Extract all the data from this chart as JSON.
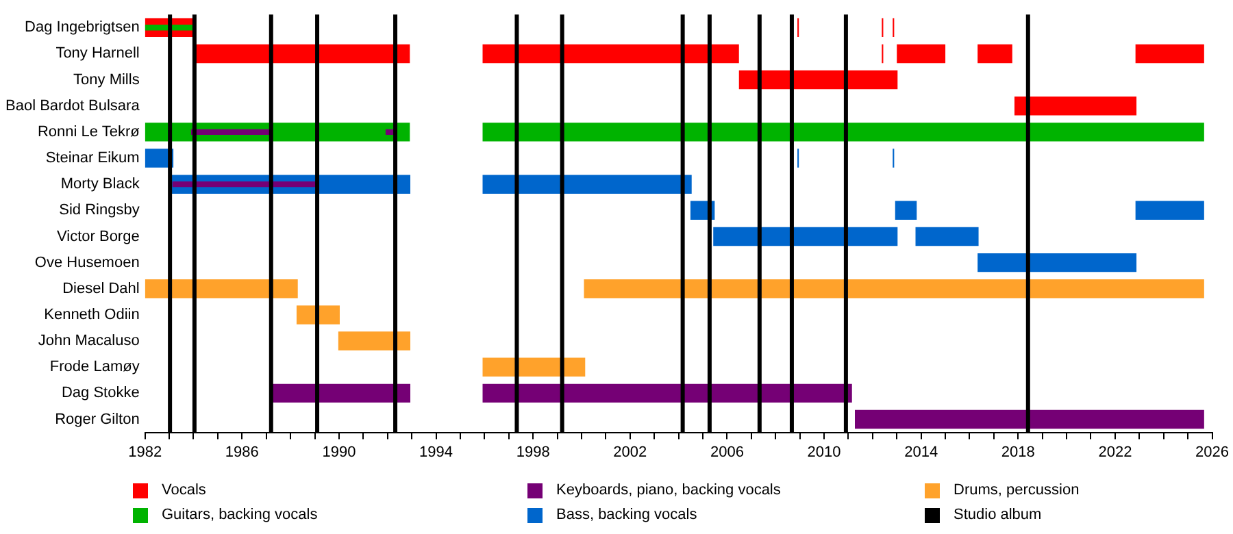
{
  "chart_data": {
    "type": "bar",
    "orientation": "horizontal",
    "categories": [
      "Dag Ingebrigtsen",
      "Tony Harnell",
      "Tony Mills",
      "Baol Bardot Bulsara",
      "Ronni Le Tekrø",
      "Steinar Eikum",
      "Morty Black",
      "Sid Ringsby",
      "Victor Borge",
      "Ove Husemoen",
      "Diesel Dahl",
      "Kenneth Odiin",
      "John Macaluso",
      "Frode Lamøy",
      "Dag Stokke",
      "Roger Gilton"
    ],
    "series": [
      {
        "name": "Vocals",
        "color": "#ff0000",
        "base": [
          1982,
          1984.02,
          2006.49,
          2017.85,
          null,
          null,
          null,
          null,
          null,
          null,
          null,
          null,
          null,
          null,
          null,
          null
        ],
        "values": [
          2.0,
          8.9,
          6.54,
          5.03,
          null,
          null,
          null,
          null,
          null,
          null,
          null,
          null,
          null,
          null,
          null,
          null
        ]
      },
      {
        "color": "#ff0000",
        "base": [
          2008.9,
          1995.92,
          null,
          null,
          null,
          null,
          null,
          null,
          null,
          null,
          null,
          null,
          null,
          null,
          null,
          null
        ],
        "values": [
          0.06,
          10.57,
          null,
          null,
          null,
          null,
          null,
          null,
          null,
          null,
          null,
          null,
          null,
          null,
          null,
          null
        ]
      },
      {
        "color": "#ff0000",
        "base": [
          2012.38,
          2012.38,
          null,
          null,
          null,
          null,
          null,
          null,
          null,
          null,
          null,
          null,
          null,
          null,
          null,
          null
        ],
        "values": [
          0.06,
          0.06,
          null,
          null,
          null,
          null,
          null,
          null,
          null,
          null,
          null,
          null,
          null,
          null,
          null,
          null
        ]
      },
      {
        "color": "#ff0000",
        "base": [
          2012.83,
          2013.0,
          null,
          null,
          null,
          null,
          null,
          null,
          null,
          null,
          null,
          null,
          null,
          null,
          null,
          null
        ],
        "values": [
          0.06,
          2.0,
          null,
          null,
          null,
          null,
          null,
          null,
          null,
          null,
          null,
          null,
          null,
          null,
          null,
          null
        ]
      },
      {
        "color": "#ff0000",
        "base": [
          null,
          2016.33,
          null,
          null,
          null,
          null,
          null,
          null,
          null,
          null,
          null,
          null,
          null,
          null,
          null,
          null
        ],
        "values": [
          null,
          1.43,
          null,
          null,
          null,
          null,
          null,
          null,
          null,
          null,
          null,
          null,
          null,
          null,
          null,
          null
        ]
      },
      {
        "color": "#ff0000",
        "base": [
          null,
          2022.84,
          null,
          null,
          null,
          null,
          null,
          null,
          null,
          null,
          null,
          null,
          null,
          null,
          null,
          null
        ],
        "values": [
          null,
          2.83,
          null,
          null,
          null,
          null,
          null,
          null,
          null,
          null,
          null,
          null,
          null,
          null,
          null,
          null
        ]
      },
      {
        "name": "Guitars, backing vocals",
        "color": "#00b300",
        "base": [
          null,
          null,
          null,
          null,
          1982,
          null,
          null,
          null,
          null,
          null,
          null,
          null,
          null,
          null,
          null,
          null
        ],
        "values": [
          null,
          null,
          null,
          null,
          10.92,
          null,
          null,
          null,
          null,
          null,
          null,
          null,
          null,
          null,
          null,
          null
        ]
      },
      {
        "color": "#00b300",
        "base": [
          null,
          null,
          null,
          null,
          1995.92,
          null,
          null,
          null,
          null,
          null,
          null,
          null,
          null,
          null,
          null,
          null
        ],
        "values": [
          null,
          null,
          null,
          null,
          29.75,
          null,
          null,
          null,
          null,
          null,
          null,
          null,
          null,
          null,
          null,
          null
        ]
      },
      {
        "color": "#00b300",
        "base": [
          1982,
          null,
          null,
          null,
          null,
          null,
          null,
          null,
          null,
          null,
          null,
          null,
          null,
          null,
          null,
          null
        ],
        "values": [
          2.0,
          null,
          null,
          null,
          null,
          null,
          null,
          null,
          null,
          null,
          null,
          null,
          null,
          null,
          null,
          null
        ]
      },
      {
        "name": "Keyboards, piano, backing vocals",
        "color": "#750075",
        "base": [
          null,
          null,
          null,
          null,
          null,
          null,
          null,
          null,
          null,
          null,
          null,
          null,
          null,
          null,
          1987.19,
          2011.27
        ],
        "values": [
          null,
          null,
          null,
          null,
          null,
          null,
          null,
          null,
          null,
          null,
          null,
          null,
          null,
          null,
          5.75,
          14.4
        ]
      },
      {
        "color": "#750075",
        "base": [
          null,
          null,
          null,
          null,
          null,
          null,
          null,
          null,
          null,
          null,
          null,
          null,
          null,
          null,
          1995.92,
          null
        ],
        "values": [
          null,
          null,
          null,
          null,
          null,
          null,
          null,
          null,
          null,
          null,
          null,
          null,
          null,
          null,
          15.23,
          null
        ]
      },
      {
        "name": "Bass, backing vocals",
        "color": "#0066cc",
        "base": [
          null,
          null,
          null,
          null,
          null,
          1982,
          1983.11,
          2004.49,
          2005.43,
          2016.33,
          null,
          null,
          null,
          null,
          null,
          null
        ],
        "values": [
          null,
          null,
          null,
          null,
          null,
          1.17,
          9.83,
          1.0,
          7.6,
          6.55,
          null,
          null,
          null,
          null,
          null,
          null
        ]
      },
      {
        "color": "#0066cc",
        "base": [
          null,
          null,
          null,
          null,
          null,
          2008.9,
          1995.92,
          2012.93,
          2013.77,
          null,
          null,
          null,
          null,
          null,
          null,
          null
        ],
        "values": [
          null,
          null,
          null,
          null,
          null,
          0.06,
          8.62,
          0.89,
          2.6,
          null,
          null,
          null,
          null,
          null,
          null,
          null
        ]
      },
      {
        "color": "#0066cc",
        "base": [
          null,
          null,
          null,
          null,
          null,
          2012.83,
          null,
          2022.84,
          null,
          null,
          null,
          null,
          null,
          null,
          null,
          null
        ],
        "values": [
          null,
          null,
          null,
          null,
          null,
          0.06,
          null,
          2.83,
          null,
          null,
          null,
          null,
          null,
          null,
          null,
          null
        ]
      },
      {
        "name": "Drums, percussion",
        "color": "#ffa22b",
        "base": [
          null,
          null,
          null,
          null,
          null,
          null,
          null,
          null,
          null,
          null,
          1982,
          1988.25,
          1989.97,
          1995.92,
          null,
          null
        ],
        "values": [
          null,
          null,
          null,
          null,
          null,
          null,
          null,
          null,
          null,
          null,
          6.3,
          1.78,
          2.97,
          4.23,
          null,
          null
        ]
      },
      {
        "color": "#ffa22b",
        "base": [
          null,
          null,
          null,
          null,
          null,
          null,
          null,
          null,
          null,
          null,
          2000.1,
          null,
          null,
          null,
          null,
          null
        ],
        "values": [
          null,
          null,
          null,
          null,
          null,
          null,
          null,
          null,
          null,
          null,
          25.57,
          null,
          null,
          null,
          null,
          null
        ]
      },
      {
        "color": "#750075",
        "base": [
          null,
          null,
          null,
          null,
          1983.9,
          null,
          1983.13,
          null,
          null,
          null,
          null,
          null,
          null,
          null,
          null,
          null
        ],
        "values": [
          null,
          null,
          null,
          null,
          3.35,
          null,
          5.97,
          null,
          null,
          null,
          null,
          null,
          null,
          null,
          null,
          null
        ]
      },
      {
        "color": "#750075",
        "base": [
          null,
          null,
          null,
          null,
          1991.92,
          null,
          null,
          null,
          null,
          null,
          null,
          null,
          null,
          null,
          null,
          null
        ],
        "values": [
          null,
          null,
          null,
          null,
          0.33,
          null,
          null,
          null,
          null,
          null,
          null,
          null,
          null,
          null,
          null,
          null
        ]
      }
    ],
    "xlim": [
      1982,
      2026
    ],
    "xticks": [
      1982,
      {
        "value": 1983,
        "label": null
      },
      {
        "value": 1984,
        "label": null
      },
      {
        "value": 1985,
        "label": null
      },
      1986,
      {
        "value": 1987,
        "label": null
      },
      {
        "value": 1988,
        "label": null
      },
      {
        "value": 1989,
        "label": null
      },
      1990,
      {
        "value": 1991,
        "label": null
      },
      {
        "value": 1992,
        "label": null
      },
      {
        "value": 1993,
        "label": null
      },
      1994,
      {
        "value": 1995,
        "label": null
      },
      {
        "value": 1996,
        "label": null
      },
      {
        "value": 1997,
        "label": null
      },
      1998,
      {
        "value": 1999,
        "label": null
      },
      {
        "value": 2000,
        "label": null
      },
      {
        "value": 2001,
        "label": null
      },
      2002,
      {
        "value": 2003,
        "label": null
      },
      {
        "value": 2004,
        "label": null
      },
      {
        "value": 2005,
        "label": null
      },
      2006,
      {
        "value": 2007,
        "label": null
      },
      {
        "value": 2008,
        "label": null
      },
      {
        "value": 2009,
        "label": null
      },
      2010,
      {
        "value": 2011,
        "label": null
      },
      {
        "value": 2012,
        "label": null
      },
      {
        "value": 2013,
        "label": null
      },
      2014,
      {
        "value": 2015,
        "label": null
      },
      {
        "value": 2016,
        "label": null
      },
      {
        "value": 2017,
        "label": null
      },
      2018,
      {
        "value": 2019,
        "label": null
      },
      {
        "value": 2020,
        "label": null
      },
      {
        "value": 2021,
        "label": null
      },
      2022,
      {
        "value": 2023,
        "label": null
      },
      {
        "value": 2024,
        "label": null
      },
      {
        "value": 2025,
        "label": null
      },
      2026
    ],
    "ref_lines": [
      {
        "axis": "x",
        "value": 1983.03,
        "label": "Studio album",
        "color": "#000000"
      },
      {
        "axis": "x",
        "value": 1984.04,
        "color": "#000000"
      },
      {
        "axis": "x",
        "value": 1987.2,
        "color": "#000000"
      },
      {
        "axis": "x",
        "value": 1989.1,
        "color": "#000000"
      },
      {
        "axis": "x",
        "value": 1992.32,
        "color": "#000000"
      },
      {
        "axis": "x",
        "value": 1997.33,
        "color": "#000000"
      },
      {
        "axis": "x",
        "value": 1999.2,
        "color": "#000000"
      },
      {
        "axis": "x",
        "value": 2004.17,
        "color": "#000000"
      },
      {
        "axis": "x",
        "value": 2005.28,
        "color": "#000000"
      },
      {
        "axis": "x",
        "value": 2007.34,
        "color": "#000000"
      },
      {
        "axis": "x",
        "value": 2008.67,
        "color": "#000000"
      },
      {
        "axis": "x",
        "value": 2010.9,
        "color": "#000000"
      },
      {
        "axis": "x",
        "value": 2018.41,
        "color": "#000000"
      }
    ],
    "grid": false,
    "legend": "bottom"
  }
}
